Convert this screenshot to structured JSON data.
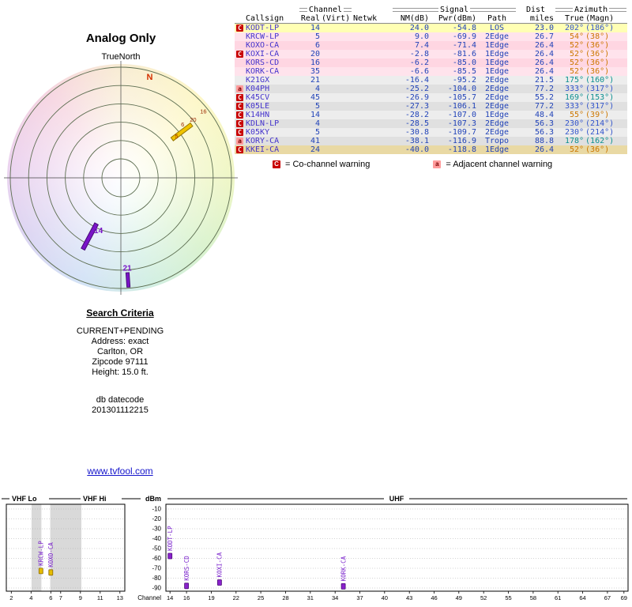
{
  "chart_data": [
    {
      "type": "scatter",
      "name": "azimuth-polar-plot",
      "title": "Analog Only",
      "north_label": "TrueNorth",
      "rings": 6,
      "bars": [
        {
          "az": 53,
          "r0": 0.58,
          "r1": 0.8,
          "w": 5,
          "color": "#f0c400",
          "stroke": "#9a7800"
        },
        {
          "az": 208,
          "r0": 0.47,
          "r1": 0.73,
          "w": 5,
          "color": "#7a14c8",
          "stroke": "#470a78"
        },
        {
          "az": 176,
          "r0": 0.86,
          "r1": 0.99,
          "w": 4,
          "color": "#7a14c8",
          "stroke": "#470a78"
        }
      ],
      "labels": [
        {
          "text": "5",
          "az": 53,
          "r": 0.63,
          "color": "#9a2800",
          "size": 7.5
        },
        {
          "text": "6",
          "az": 49,
          "r": 0.74,
          "color": "#9a2800",
          "size": 7.5
        },
        {
          "text": "20",
          "az": 51,
          "r": 0.84,
          "color": "#9a2800",
          "size": 7.5
        },
        {
          "text": "16",
          "az": 51,
          "r": 0.96,
          "color": "#9a2800",
          "size": 7.5
        },
        {
          "text": "14",
          "az": 203,
          "r": 0.52,
          "color": "#7a14c8",
          "size": 10,
          "bold": true
        },
        {
          "text": "21",
          "az": 176,
          "r": 0.82,
          "color": "#7a14c8",
          "size": 10,
          "bold": true
        },
        {
          "text": "N",
          "az": 16,
          "r": 0.945,
          "color": "#d43000",
          "size": 11,
          "bold": true
        }
      ]
    },
    {
      "type": "bar",
      "name": "signal-strength-spectrum",
      "sections": {
        "vhf_lo": "VHF Lo",
        "vhf_hi": "VHF Hi",
        "dbm": "dBm",
        "uhf": "UHF",
        "channel": "Channel"
      },
      "y_ticks": [
        -10,
        -20,
        -30,
        -40,
        -50,
        -60,
        -70,
        -80,
        -90
      ],
      "ylim": [
        -93,
        -5
      ],
      "vhf_ticks": [
        2,
        4,
        6,
        7,
        9,
        11,
        13
      ],
      "uhf_ticks": [
        14,
        16,
        19,
        22,
        25,
        28,
        31,
        34,
        37,
        40,
        43,
        46,
        49,
        52,
        55,
        58,
        61,
        64,
        67,
        69
      ],
      "gray_bands": [
        [
          4.05,
          5.05
        ],
        [
          5.95,
          9.1
        ]
      ],
      "stations": [
        {
          "callsign": "KRCW-LP",
          "channel": 5,
          "dbm": -69.9,
          "color": "#e6bc00",
          "stroke": "#8a6a00"
        },
        {
          "callsign": "KOXO-CA",
          "channel": 6,
          "dbm": -71.4,
          "color": "#e6bc00",
          "stroke": "#8a6a00"
        },
        {
          "callsign": "KODT-LP",
          "channel": 14,
          "dbm": -54.8,
          "color": "#8a22cc",
          "stroke": "#4a0a78"
        },
        {
          "callsign": "KORS-CD",
          "channel": 16,
          "dbm": -85.0,
          "color": "#8a22cc",
          "stroke": "#4a0a78"
        },
        {
          "callsign": "KOXI-CA",
          "channel": 20,
          "dbm": -81.6,
          "color": "#8a22cc",
          "stroke": "#4a0a78"
        },
        {
          "callsign": "KORK-CA",
          "channel": 35,
          "dbm": -85.5,
          "color": "#8a22cc",
          "stroke": "#4a0a78"
        }
      ]
    }
  ],
  "table": {
    "groups": {
      "channel": "Channel",
      "signal": "Signal",
      "dist": "Dist",
      "azimuth": "Azimuth"
    },
    "columns": {
      "callsign": "Callsign",
      "real": "Real",
      "virt": "(Virt)",
      "netwk": "Netwk",
      "nm": "NM(dB)",
      "pwr": "Pwr(dBm)",
      "path": "Path",
      "miles": "miles",
      "true": "True",
      "magn": "(Magn)"
    },
    "rows": [
      {
        "flag": "C",
        "callsign": "KODT-LP",
        "real": "14",
        "virt": "",
        "netwk": "",
        "nm": "24.0",
        "pwr": "-54.8",
        "path": "LOS",
        "miles": "23.0",
        "az_true": "202°",
        "az_magn": "(186°)",
        "bg": "#ffffb4",
        "az_color": "#3355cc"
      },
      {
        "flag": "",
        "callsign": "KRCW-LP",
        "real": "5",
        "virt": "",
        "netwk": "",
        "nm": "9.0",
        "pwr": "-69.9",
        "path": "2Edge",
        "miles": "26.7",
        "az_true": "54°",
        "az_magn": "(38°)",
        "bg": "#ffe3ec",
        "az_color": "#cc7700"
      },
      {
        "flag": "",
        "callsign": "KOXO-CA",
        "real": "6",
        "virt": "",
        "netwk": "",
        "nm": "7.4",
        "pwr": "-71.4",
        "path": "1Edge",
        "miles": "26.4",
        "az_true": "52°",
        "az_magn": "(36°)",
        "bg": "#ffd6e2",
        "az_color": "#cc7700"
      },
      {
        "flag": "C",
        "callsign": "KOXI-CA",
        "real": "20",
        "virt": "",
        "netwk": "",
        "nm": "-2.8",
        "pwr": "-81.6",
        "path": "1Edge",
        "miles": "26.4",
        "az_true": "52°",
        "az_magn": "(36°)",
        "bg": "#ffe3ec",
        "az_color": "#cc7700"
      },
      {
        "flag": "",
        "callsign": "KORS-CD",
        "real": "16",
        "virt": "",
        "netwk": "",
        "nm": "-6.2",
        "pwr": "-85.0",
        "path": "1Edge",
        "miles": "26.4",
        "az_true": "52°",
        "az_magn": "(36°)",
        "bg": "#ffd6e2",
        "az_color": "#cc7700"
      },
      {
        "flag": "",
        "callsign": "KORK-CA",
        "real": "35",
        "virt": "",
        "netwk": "",
        "nm": "-6.6",
        "pwr": "-85.5",
        "path": "1Edge",
        "miles": "26.4",
        "az_true": "52°",
        "az_magn": "(36°)",
        "bg": "#ffe3ec",
        "az_color": "#cc7700"
      },
      {
        "flag": "",
        "callsign": "K21GX",
        "real": "21",
        "virt": "",
        "netwk": "",
        "nm": "-16.4",
        "pwr": "-95.2",
        "path": "2Edge",
        "miles": "21.5",
        "az_true": "175°",
        "az_magn": "(160°)",
        "bg": "#ededed",
        "az_color": "#0b8f8f"
      },
      {
        "flag": "a",
        "callsign": "K04PH",
        "real": "4",
        "virt": "",
        "netwk": "",
        "nm": "-25.2",
        "pwr": "-104.0",
        "path": "2Edge",
        "miles": "77.2",
        "az_true": "333°",
        "az_magn": "(317°)",
        "bg": "#e0e0e0",
        "az_color": "#3355cc"
      },
      {
        "flag": "C",
        "callsign": "K45CV",
        "real": "45",
        "virt": "",
        "netwk": "",
        "nm": "-26.9",
        "pwr": "-105.7",
        "path": "2Edge",
        "miles": "55.2",
        "az_true": "169°",
        "az_magn": "(153°)",
        "bg": "#ededed",
        "az_color": "#0b8f8f"
      },
      {
        "flag": "C",
        "callsign": "K05LE",
        "real": "5",
        "virt": "",
        "netwk": "",
        "nm": "-27.3",
        "pwr": "-106.1",
        "path": "2Edge",
        "miles": "77.2",
        "az_true": "333°",
        "az_magn": "(317°)",
        "bg": "#e0e0e0",
        "az_color": "#3355cc"
      },
      {
        "flag": "C",
        "callsign": "K14HN",
        "real": "14",
        "virt": "",
        "netwk": "",
        "nm": "-28.2",
        "pwr": "-107.0",
        "path": "1Edge",
        "miles": "48.4",
        "az_true": "55°",
        "az_magn": "(39°)",
        "bg": "#ededed",
        "az_color": "#cc7700"
      },
      {
        "flag": "C",
        "callsign": "KDLN-LP",
        "real": "4",
        "virt": "",
        "netwk": "",
        "nm": "-28.5",
        "pwr": "-107.3",
        "path": "2Edge",
        "miles": "56.3",
        "az_true": "230°",
        "az_magn": "(214°)",
        "bg": "#e0e0e0",
        "az_color": "#3355cc"
      },
      {
        "flag": "C",
        "callsign": "K05KY",
        "real": "5",
        "virt": "",
        "netwk": "",
        "nm": "-30.8",
        "pwr": "-109.7",
        "path": "2Edge",
        "miles": "56.3",
        "az_true": "230°",
        "az_magn": "(214°)",
        "bg": "#ededed",
        "az_color": "#3355cc"
      },
      {
        "flag": "a",
        "callsign": "KORY-CA",
        "real": "41",
        "virt": "",
        "netwk": "",
        "nm": "-38.1",
        "pwr": "-116.9",
        "path": "Tropo",
        "miles": "88.8",
        "az_true": "178°",
        "az_magn": "(162°)",
        "bg": "#e0e0e0",
        "az_color": "#0b8f8f"
      },
      {
        "flag": "C",
        "callsign": "KKEI-CA",
        "real": "24",
        "virt": "",
        "netwk": "",
        "nm": "-40.0",
        "pwr": "-118.8",
        "path": "1Edge",
        "miles": "26.4",
        "az_true": "52°",
        "az_magn": "(36°)",
        "bg": "#e9d9a4",
        "az_color": "#cc7700"
      }
    ]
  },
  "legend": {
    "co_flag": "C",
    "co_text": "= Co-channel warning",
    "adj_flag": "a",
    "adj_text": "= Adjacent channel warning"
  },
  "criteria": {
    "title": "Search Criteria",
    "lines": [
      "CURRENT+PENDING",
      "Address: exact",
      "Carlton, OR",
      "Zipcode 97111",
      "Height: 15.0 ft."
    ],
    "db_label": "db datecode",
    "db_value": "201301112215"
  },
  "link_text": "www.tvfool.com"
}
